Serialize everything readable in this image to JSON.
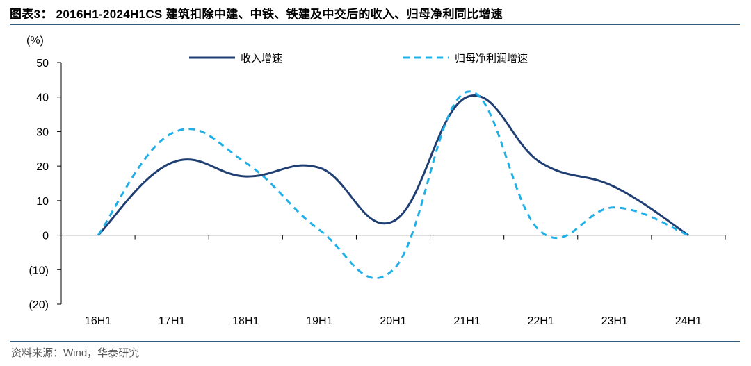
{
  "figure": {
    "title": "图表3： 2016H1-2024H1CS 建筑扣除中建、中铁、铁建及中交后的收入、归母净利同比增速",
    "source": "资料来源：Wind，华泰研究"
  },
  "chart_data": {
    "type": "line",
    "title": "",
    "ylabel": "(%)",
    "xlabel": "",
    "ylim": [
      -20,
      50
    ],
    "yticks": [
      50,
      40,
      30,
      20,
      10,
      0,
      -10,
      -20
    ],
    "ytick_labels": [
      "50",
      "40",
      "30",
      "20",
      "10",
      "0",
      "(10)",
      "(20)"
    ],
    "categories": [
      "16H1",
      "17H1",
      "18H1",
      "19H1",
      "20H1",
      "21H1",
      "22H1",
      "23H1",
      "24H1"
    ],
    "grid": false,
    "legend_position": "top",
    "series": [
      {
        "name": "收入增速",
        "style": "solid",
        "color": "#1f3f73",
        "values": [
          0,
          21,
          17,
          19.5,
          4,
          40,
          21,
          14,
          0
        ]
      },
      {
        "name": "归母净利润增速",
        "style": "dashed",
        "color": "#20b0e8",
        "values": [
          0,
          29.5,
          21,
          1.5,
          -10,
          41.5,
          1,
          8,
          0
        ]
      }
    ]
  }
}
